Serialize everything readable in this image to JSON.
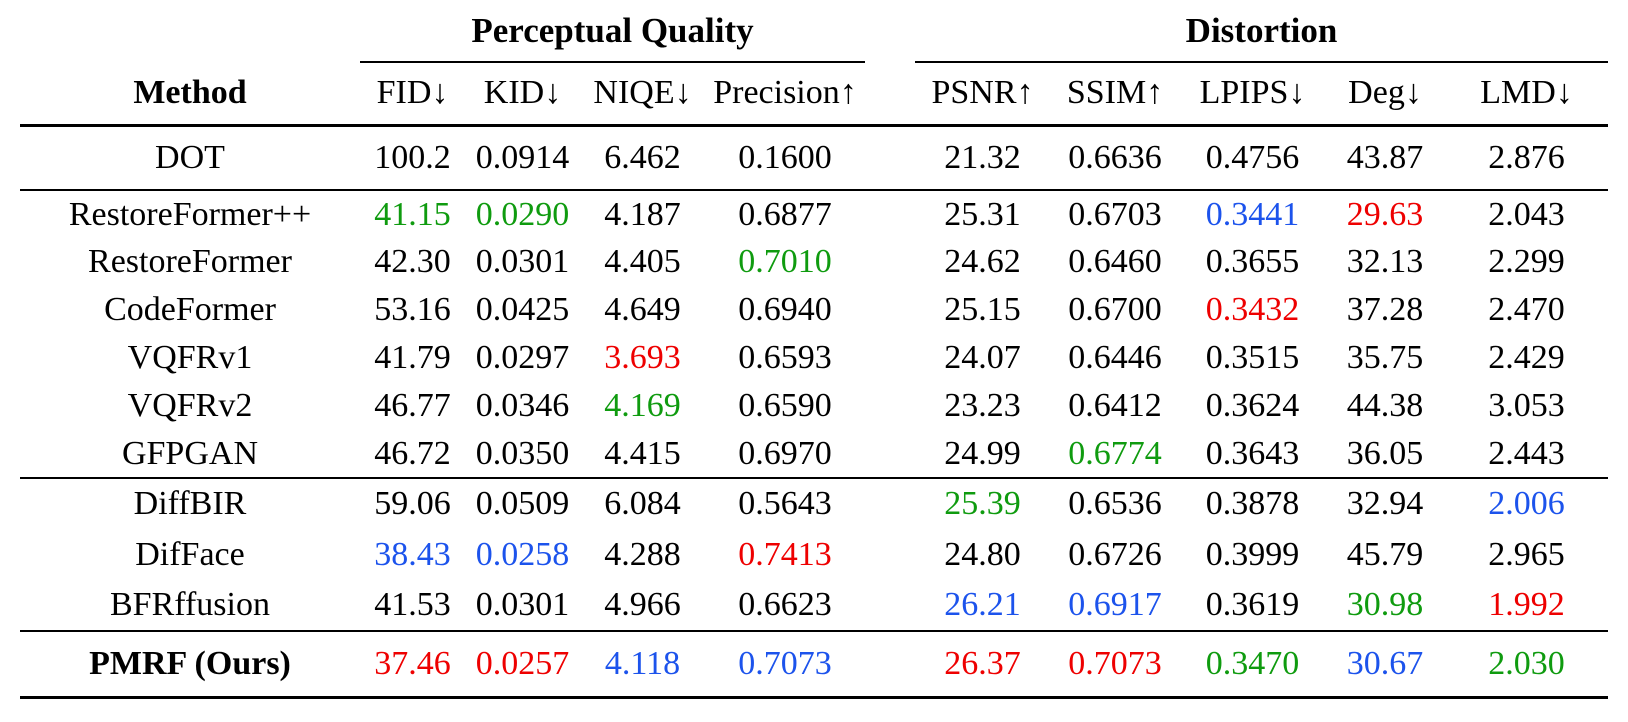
{
  "table": {
    "group_headers": [
      {
        "label": "Perceptual Quality"
      },
      {
        "label": "Distortion"
      }
    ],
    "columns": [
      {
        "key": "method",
        "label": "Method"
      },
      {
        "key": "fid",
        "label": "FID↓"
      },
      {
        "key": "kid",
        "label": "KID↓"
      },
      {
        "key": "niqe",
        "label": "NIQE↓"
      },
      {
        "key": "precision",
        "label": "Precision↑"
      },
      {
        "key": "psnr",
        "label": "PSNR↑"
      },
      {
        "key": "ssim",
        "label": "SSIM↑"
      },
      {
        "key": "lpips",
        "label": "LPIPS↓"
      },
      {
        "key": "deg",
        "label": "Deg↓"
      },
      {
        "key": "lmd",
        "label": "LMD↓"
      }
    ],
    "rank_colors": {
      "best": "#ee0000",
      "second": "#1c53ec",
      "third": "#0f9b0f",
      "default": "#000000"
    },
    "row_groups": [
      {
        "rows": [
          {
            "method": "DOT",
            "bold": false,
            "values": [
              {
                "t": "100.2"
              },
              {
                "t": "0.0914"
              },
              {
                "t": "6.462"
              },
              {
                "t": "0.1600"
              },
              {
                "t": "21.32"
              },
              {
                "t": "0.6636"
              },
              {
                "t": "0.4756"
              },
              {
                "t": "43.87"
              },
              {
                "t": "2.876"
              }
            ]
          }
        ]
      },
      {
        "rows": [
          {
            "method": "RestoreFormer++",
            "bold": false,
            "values": [
              {
                "t": "41.15",
                "rank": "third"
              },
              {
                "t": "0.0290",
                "rank": "third"
              },
              {
                "t": "4.187"
              },
              {
                "t": "0.6877"
              },
              {
                "t": "25.31"
              },
              {
                "t": "0.6703"
              },
              {
                "t": "0.3441",
                "rank": "second"
              },
              {
                "t": "29.63",
                "rank": "best"
              },
              {
                "t": "2.043"
              }
            ]
          },
          {
            "method": "RestoreFormer",
            "bold": false,
            "values": [
              {
                "t": "42.30"
              },
              {
                "t": "0.0301"
              },
              {
                "t": "4.405"
              },
              {
                "t": "0.7010",
                "rank": "third"
              },
              {
                "t": "24.62"
              },
              {
                "t": "0.6460"
              },
              {
                "t": "0.3655"
              },
              {
                "t": "32.13"
              },
              {
                "t": "2.299"
              }
            ]
          },
          {
            "method": "CodeFormer",
            "bold": false,
            "values": [
              {
                "t": "53.16"
              },
              {
                "t": "0.0425"
              },
              {
                "t": "4.649"
              },
              {
                "t": "0.6940"
              },
              {
                "t": "25.15"
              },
              {
                "t": "0.6700"
              },
              {
                "t": "0.3432",
                "rank": "best"
              },
              {
                "t": "37.28"
              },
              {
                "t": "2.470"
              }
            ]
          },
          {
            "method": "VQFRv1",
            "bold": false,
            "values": [
              {
                "t": "41.79"
              },
              {
                "t": "0.0297"
              },
              {
                "t": "3.693",
                "rank": "best"
              },
              {
                "t": "0.6593"
              },
              {
                "t": "24.07"
              },
              {
                "t": "0.6446"
              },
              {
                "t": "0.3515"
              },
              {
                "t": "35.75"
              },
              {
                "t": "2.429"
              }
            ]
          },
          {
            "method": "VQFRv2",
            "bold": false,
            "values": [
              {
                "t": "46.77"
              },
              {
                "t": "0.0346"
              },
              {
                "t": "4.169",
                "rank": "third"
              },
              {
                "t": "0.6590"
              },
              {
                "t": "23.23"
              },
              {
                "t": "0.6412"
              },
              {
                "t": "0.3624"
              },
              {
                "t": "44.38"
              },
              {
                "t": "3.053"
              }
            ]
          },
          {
            "method": "GFPGAN",
            "bold": false,
            "values": [
              {
                "t": "46.72"
              },
              {
                "t": "0.0350"
              },
              {
                "t": "4.415"
              },
              {
                "t": "0.6970"
              },
              {
                "t": "24.99"
              },
              {
                "t": "0.6774",
                "rank": "third"
              },
              {
                "t": "0.3643"
              },
              {
                "t": "36.05"
              },
              {
                "t": "2.443"
              }
            ]
          }
        ]
      },
      {
        "rows": [
          {
            "method": "DiffBIR",
            "bold": false,
            "values": [
              {
                "t": "59.06"
              },
              {
                "t": "0.0509"
              },
              {
                "t": "6.084"
              },
              {
                "t": "0.5643"
              },
              {
                "t": "25.39",
                "rank": "third"
              },
              {
                "t": "0.6536"
              },
              {
                "t": "0.3878"
              },
              {
                "t": "32.94"
              },
              {
                "t": "2.006",
                "rank": "second"
              }
            ]
          },
          {
            "method": "DifFace",
            "bold": false,
            "values": [
              {
                "t": "38.43",
                "rank": "second"
              },
              {
                "t": "0.0258",
                "rank": "second"
              },
              {
                "t": "4.288"
              },
              {
                "t": "0.7413",
                "rank": "best"
              },
              {
                "t": "24.80"
              },
              {
                "t": "0.6726"
              },
              {
                "t": "0.3999"
              },
              {
                "t": "45.79"
              },
              {
                "t": "2.965"
              }
            ]
          },
          {
            "method": "BFRffusion",
            "bold": false,
            "values": [
              {
                "t": "41.53"
              },
              {
                "t": "0.0301"
              },
              {
                "t": "4.966"
              },
              {
                "t": "0.6623"
              },
              {
                "t": "26.21",
                "rank": "second"
              },
              {
                "t": "0.6917",
                "rank": "second"
              },
              {
                "t": "0.3619"
              },
              {
                "t": "30.98",
                "rank": "third"
              },
              {
                "t": "1.992",
                "rank": "best"
              }
            ]
          }
        ]
      },
      {
        "rows": [
          {
            "method": "PMRF (Ours)",
            "bold": true,
            "values": [
              {
                "t": "37.46",
                "rank": "best"
              },
              {
                "t": "0.0257",
                "rank": "best"
              },
              {
                "t": "4.118",
                "rank": "second"
              },
              {
                "t": "0.7073",
                "rank": "second"
              },
              {
                "t": "26.37",
                "rank": "best"
              },
              {
                "t": "0.7073",
                "rank": "best"
              },
              {
                "t": "0.3470",
                "rank": "third"
              },
              {
                "t": "30.67",
                "rank": "second"
              },
              {
                "t": "2.030",
                "rank": "third"
              }
            ]
          }
        ]
      }
    ]
  }
}
